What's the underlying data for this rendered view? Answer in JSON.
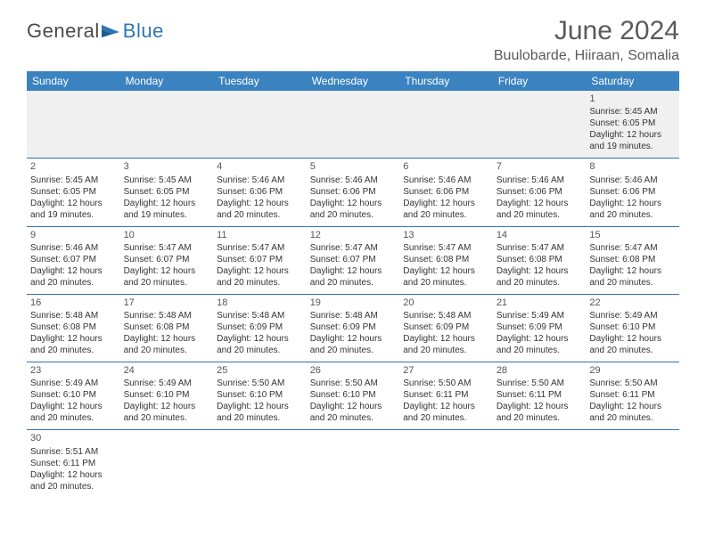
{
  "logo": {
    "part1": "Genera",
    "part2": "l",
    "part3": "Blue"
  },
  "title": "June 2024",
  "location": "Buulobarde, Hiiraan, Somalia",
  "colors": {
    "header_bg": "#3b83c0",
    "header_text": "#ffffff",
    "border": "#2e74b5",
    "empty_bg": "#f0f0f0",
    "text": "#333333",
    "title_text": "#5a5a5a"
  },
  "day_headers": [
    "Sunday",
    "Monday",
    "Tuesday",
    "Wednesday",
    "Thursday",
    "Friday",
    "Saturday"
  ],
  "weeks": [
    [
      null,
      null,
      null,
      null,
      null,
      null,
      {
        "n": "1",
        "sr": "5:45 AM",
        "ss": "6:05 PM",
        "dl": "12 hours and 19 minutes."
      }
    ],
    [
      {
        "n": "2",
        "sr": "5:45 AM",
        "ss": "6:05 PM",
        "dl": "12 hours and 19 minutes."
      },
      {
        "n": "3",
        "sr": "5:45 AM",
        "ss": "6:05 PM",
        "dl": "12 hours and 19 minutes."
      },
      {
        "n": "4",
        "sr": "5:46 AM",
        "ss": "6:06 PM",
        "dl": "12 hours and 20 minutes."
      },
      {
        "n": "5",
        "sr": "5:46 AM",
        "ss": "6:06 PM",
        "dl": "12 hours and 20 minutes."
      },
      {
        "n": "6",
        "sr": "5:46 AM",
        "ss": "6:06 PM",
        "dl": "12 hours and 20 minutes."
      },
      {
        "n": "7",
        "sr": "5:46 AM",
        "ss": "6:06 PM",
        "dl": "12 hours and 20 minutes."
      },
      {
        "n": "8",
        "sr": "5:46 AM",
        "ss": "6:06 PM",
        "dl": "12 hours and 20 minutes."
      }
    ],
    [
      {
        "n": "9",
        "sr": "5:46 AM",
        "ss": "6:07 PM",
        "dl": "12 hours and 20 minutes."
      },
      {
        "n": "10",
        "sr": "5:47 AM",
        "ss": "6:07 PM",
        "dl": "12 hours and 20 minutes."
      },
      {
        "n": "11",
        "sr": "5:47 AM",
        "ss": "6:07 PM",
        "dl": "12 hours and 20 minutes."
      },
      {
        "n": "12",
        "sr": "5:47 AM",
        "ss": "6:07 PM",
        "dl": "12 hours and 20 minutes."
      },
      {
        "n": "13",
        "sr": "5:47 AM",
        "ss": "6:08 PM",
        "dl": "12 hours and 20 minutes."
      },
      {
        "n": "14",
        "sr": "5:47 AM",
        "ss": "6:08 PM",
        "dl": "12 hours and 20 minutes."
      },
      {
        "n": "15",
        "sr": "5:47 AM",
        "ss": "6:08 PM",
        "dl": "12 hours and 20 minutes."
      }
    ],
    [
      {
        "n": "16",
        "sr": "5:48 AM",
        "ss": "6:08 PM",
        "dl": "12 hours and 20 minutes."
      },
      {
        "n": "17",
        "sr": "5:48 AM",
        "ss": "6:08 PM",
        "dl": "12 hours and 20 minutes."
      },
      {
        "n": "18",
        "sr": "5:48 AM",
        "ss": "6:09 PM",
        "dl": "12 hours and 20 minutes."
      },
      {
        "n": "19",
        "sr": "5:48 AM",
        "ss": "6:09 PM",
        "dl": "12 hours and 20 minutes."
      },
      {
        "n": "20",
        "sr": "5:48 AM",
        "ss": "6:09 PM",
        "dl": "12 hours and 20 minutes."
      },
      {
        "n": "21",
        "sr": "5:49 AM",
        "ss": "6:09 PM",
        "dl": "12 hours and 20 minutes."
      },
      {
        "n": "22",
        "sr": "5:49 AM",
        "ss": "6:10 PM",
        "dl": "12 hours and 20 minutes."
      }
    ],
    [
      {
        "n": "23",
        "sr": "5:49 AM",
        "ss": "6:10 PM",
        "dl": "12 hours and 20 minutes."
      },
      {
        "n": "24",
        "sr": "5:49 AM",
        "ss": "6:10 PM",
        "dl": "12 hours and 20 minutes."
      },
      {
        "n": "25",
        "sr": "5:50 AM",
        "ss": "6:10 PM",
        "dl": "12 hours and 20 minutes."
      },
      {
        "n": "26",
        "sr": "5:50 AM",
        "ss": "6:10 PM",
        "dl": "12 hours and 20 minutes."
      },
      {
        "n": "27",
        "sr": "5:50 AM",
        "ss": "6:11 PM",
        "dl": "12 hours and 20 minutes."
      },
      {
        "n": "28",
        "sr": "5:50 AM",
        "ss": "6:11 PM",
        "dl": "12 hours and 20 minutes."
      },
      {
        "n": "29",
        "sr": "5:50 AM",
        "ss": "6:11 PM",
        "dl": "12 hours and 20 minutes."
      }
    ],
    [
      {
        "n": "30",
        "sr": "5:51 AM",
        "ss": "6:11 PM",
        "dl": "12 hours and 20 minutes."
      },
      null,
      null,
      null,
      null,
      null,
      null
    ]
  ],
  "labels": {
    "sunrise": "Sunrise:",
    "sunset": "Sunset:",
    "daylight": "Daylight:"
  }
}
